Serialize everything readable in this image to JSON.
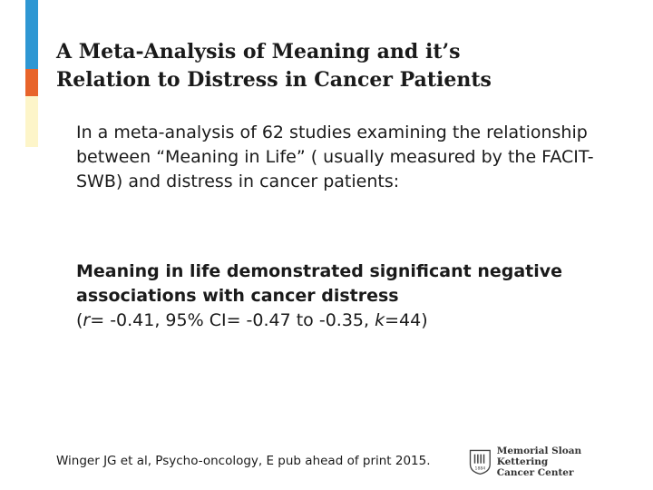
{
  "slide": {
    "title_line1": "A Meta-Analysis of Meaning and it’s",
    "title_line2": "Relation to Distress in Cancer Patients",
    "intro": "In a meta-analysis of 62 studies examining  the relationship between “Meaning in Life” ( usually measured by the FACIT-SWB) and distress in cancer patients:",
    "finding_bold": "Meaning in life demonstrated significant negative associations with cancer distress",
    "stats": {
      "open": "(",
      "r_symbol": "r",
      "r_value": "= -0.41, 95% CI= -0.47 to -0.35, ",
      "k_symbol": "k",
      "k_value": "=44)"
    },
    "citation": "Winger JG et al, Psycho-oncology, E pub ahead of print  2015."
  },
  "logo": {
    "line1": "Memorial Sloan Kettering",
    "line2": "Cancer Center",
    "year": "1884"
  },
  "colors": {
    "accent_blue": "#2e97d3",
    "accent_orange": "#e8642a",
    "accent_cream": "#fdf5c9"
  }
}
